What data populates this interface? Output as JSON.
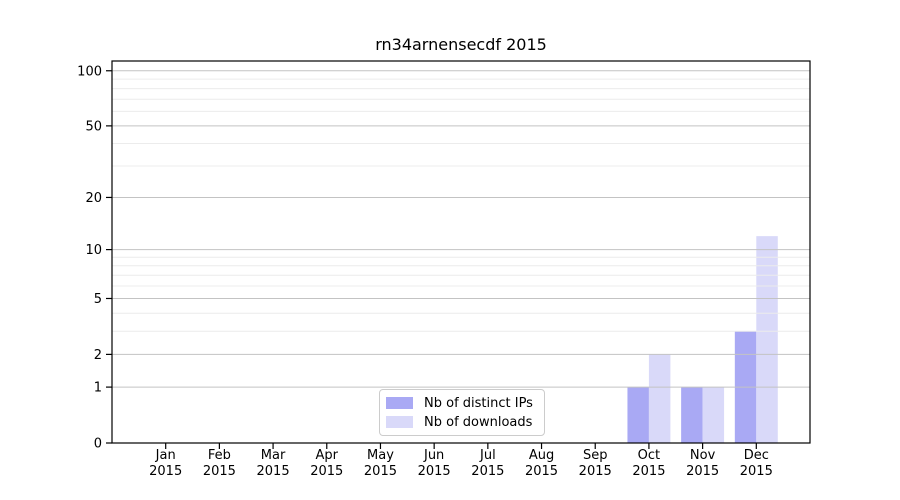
{
  "figure_title": "rn34arnensecdf 2015",
  "chart_data": {
    "type": "bar",
    "title": "rn34arnensecdf 2015",
    "x_categories": [
      "Jan 2015",
      "Feb 2015",
      "Mar 2015",
      "Apr 2015",
      "May 2015",
      "Jun 2015",
      "Jul 2015",
      "Aug 2015",
      "Sep 2015",
      "Oct 2015",
      "Nov 2015",
      "Dec 2015"
    ],
    "x_tick_month_labels": [
      "Jan",
      "Feb",
      "Mar",
      "Apr",
      "May",
      "Jun",
      "Jul",
      "Aug",
      "Sep",
      "Oct",
      "Nov",
      "Dec"
    ],
    "x_tick_year_label": "2015",
    "y_scale": "log1p",
    "y_tick_labels": [
      "0",
      "1",
      "2",
      "5",
      "10",
      "20",
      "50",
      "100"
    ],
    "y_ticks": [
      0,
      1,
      2,
      5,
      10,
      20,
      50,
      100
    ],
    "y_major_grid": [
      1,
      2,
      5,
      10,
      20,
      50,
      100
    ],
    "y_minor_grid": [
      3,
      4,
      6,
      7,
      8,
      9,
      30,
      40,
      60,
      70,
      80,
      90
    ],
    "ylim": [
      0,
      113
    ],
    "grid": true,
    "grid_above_bars": true,
    "legend_position": "lower center",
    "series": [
      {
        "name": "Nb of distinct IPs",
        "color": "#a9a9f4",
        "values": [
          0,
          0,
          0,
          0,
          0,
          0,
          0,
          0,
          0,
          1,
          1,
          3
        ]
      },
      {
        "name": "Nb of downloads",
        "color": "#d9d9f9",
        "values": [
          0,
          0,
          0,
          0,
          0,
          0,
          0,
          0,
          0,
          2,
          1,
          12
        ]
      }
    ]
  }
}
